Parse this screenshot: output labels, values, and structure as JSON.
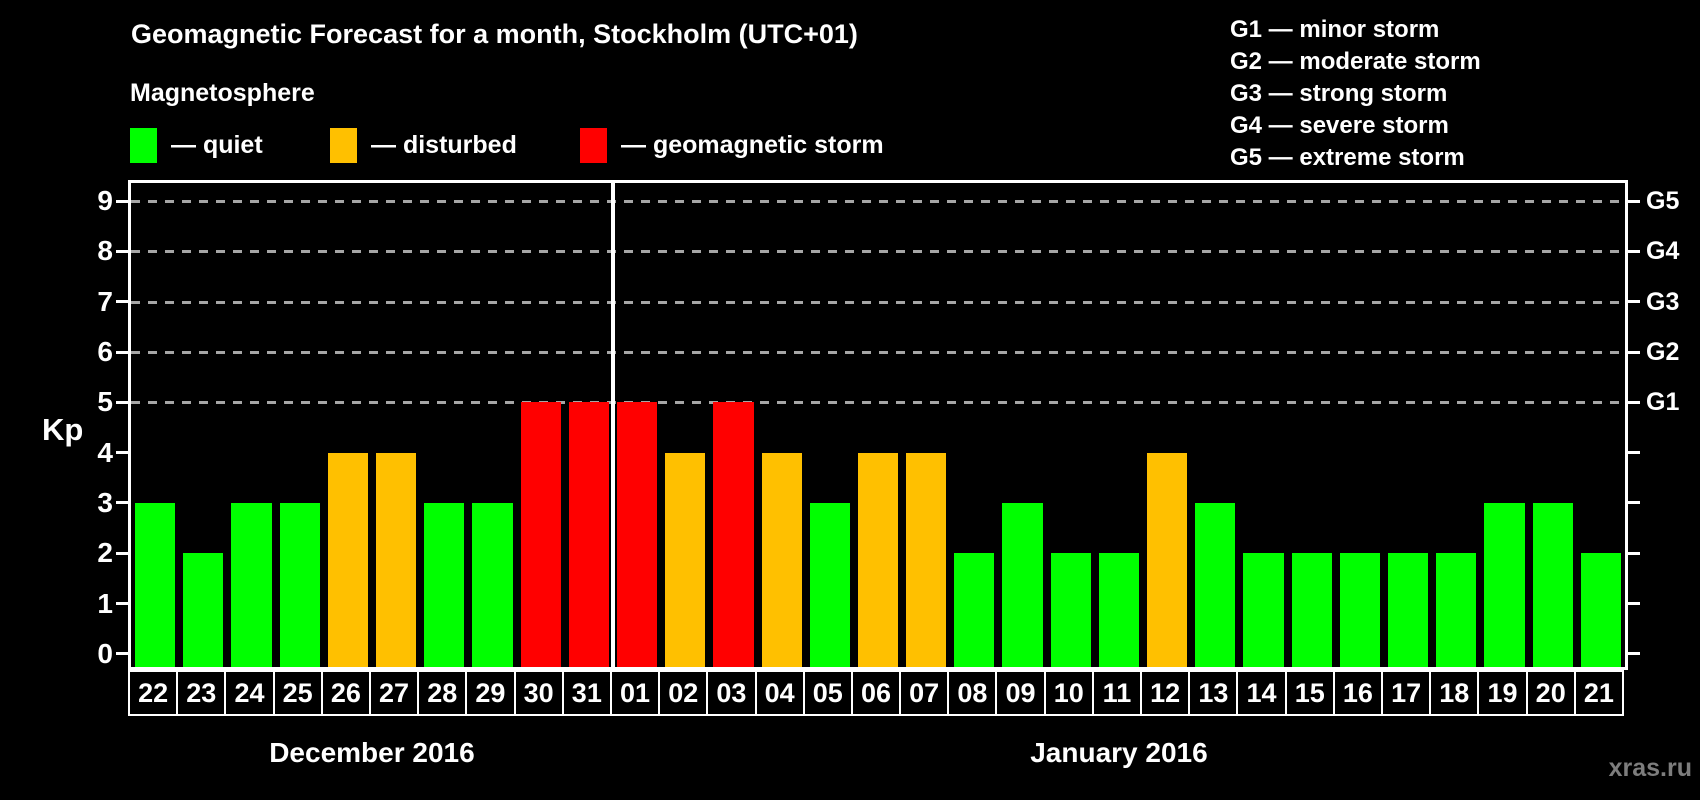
{
  "header": {
    "title": "Geomagnetic Forecast for a month, Stockholm (UTC+01)",
    "subtitle": "Magnetosphere"
  },
  "legend": {
    "items": [
      {
        "status": "quiet",
        "label": "— quiet",
        "color": "#00ff00"
      },
      {
        "status": "disturbed",
        "label": "— disturbed",
        "color": "#ffc000"
      },
      {
        "status": "storm",
        "label": "— geomagnetic storm",
        "color": "#ff0000"
      }
    ]
  },
  "g_legend": [
    "G1 — minor storm",
    "G2 — moderate storm",
    "G3 — strong storm",
    "G4 — severe storm",
    "G5 — extreme storm"
  ],
  "watermark": "xras.ru",
  "chart_data": {
    "type": "bar",
    "ylabel": "Kp",
    "ylim": [
      0,
      9
    ],
    "grid": "dashed horizontal lines at Kp 5-9 only",
    "legend_position": "top",
    "kp_ticks": [
      "0",
      "1",
      "2",
      "3",
      "4",
      "5",
      "6",
      "7",
      "8",
      "9"
    ],
    "gridlines_kp": [
      5,
      6,
      7,
      8,
      9
    ],
    "right_axis_labels": [
      {
        "text": "G1",
        "kp": 5
      },
      {
        "text": "G2",
        "kp": 6
      },
      {
        "text": "G3",
        "kp": 7
      },
      {
        "text": "G4",
        "kp": 8
      },
      {
        "text": "G5",
        "kp": 9
      }
    ],
    "categories": [
      "22",
      "23",
      "24",
      "25",
      "26",
      "27",
      "28",
      "29",
      "30",
      "31",
      "01",
      "02",
      "03",
      "04",
      "05",
      "06",
      "07",
      "08",
      "09",
      "10",
      "11",
      "12",
      "13",
      "14",
      "15",
      "16",
      "17",
      "18",
      "19",
      "20",
      "21"
    ],
    "values": [
      3,
      2,
      3,
      3,
      4,
      4,
      3,
      3,
      5,
      5,
      5,
      4,
      5,
      4,
      3,
      4,
      4,
      2,
      3,
      2,
      2,
      4,
      3,
      2,
      2,
      2,
      2,
      2,
      3,
      3,
      2
    ],
    "statuses": [
      "quiet",
      "quiet",
      "quiet",
      "quiet",
      "disturbed",
      "disturbed",
      "quiet",
      "quiet",
      "storm",
      "storm",
      "storm",
      "disturbed",
      "storm",
      "disturbed",
      "quiet",
      "disturbed",
      "disturbed",
      "quiet",
      "quiet",
      "quiet",
      "quiet",
      "disturbed",
      "quiet",
      "quiet",
      "quiet",
      "quiet",
      "quiet",
      "quiet",
      "quiet",
      "quiet",
      "quiet"
    ],
    "status_colors": {
      "quiet": "#00ff00",
      "disturbed": "#ffc000",
      "storm": "#ff0000"
    },
    "months": [
      {
        "label": "December 2016",
        "days": 10
      },
      {
        "label": "January 2016",
        "days": 21
      }
    ]
  }
}
